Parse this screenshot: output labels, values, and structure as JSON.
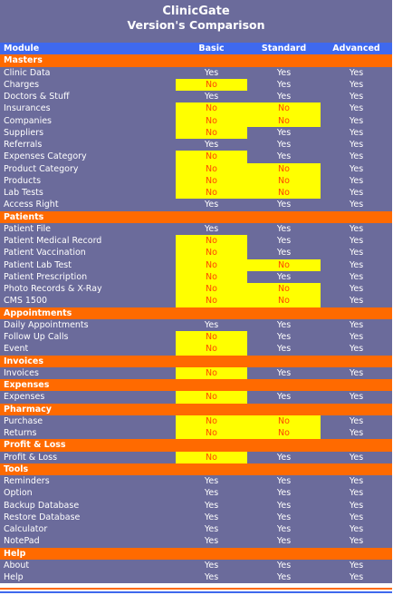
{
  "title": "ClinicGate",
  "subtitle": "Version's Comparison",
  "columns": [
    "Module",
    "Basic",
    "Standard",
    "Advanced"
  ],
  "colors": {
    "panel": "#6b6b9b",
    "header": "#3f69ee",
    "section": "#ff6a00",
    "no_bg": "#ffff00",
    "no_text": "#ff4500"
  },
  "sections": [
    {
      "name": "Masters",
      "rows": [
        {
          "name": "Clinic Data",
          "values": [
            "Yes",
            "Yes",
            "Yes"
          ]
        },
        {
          "name": "Charges",
          "values": [
            "No",
            "Yes",
            "Yes"
          ]
        },
        {
          "name": "Doctors & Stuff",
          "values": [
            "Yes",
            "Yes",
            "Yes"
          ]
        },
        {
          "name": "Insurances",
          "values": [
            "No",
            "No",
            "Yes"
          ]
        },
        {
          "name": "Companies",
          "values": [
            "No",
            "No",
            "Yes"
          ]
        },
        {
          "name": "Suppliers",
          "values": [
            "No",
            "Yes",
            "Yes"
          ]
        },
        {
          "name": "Referrals",
          "values": [
            "Yes",
            "Yes",
            "Yes"
          ]
        },
        {
          "name": "Expenses Category",
          "values": [
            "No",
            "Yes",
            "Yes"
          ]
        },
        {
          "name": "Product Category",
          "values": [
            "No",
            "No",
            "Yes"
          ]
        },
        {
          "name": "Products",
          "values": [
            "No",
            "No",
            "Yes"
          ]
        },
        {
          "name": "Lab Tests",
          "values": [
            "No",
            "No",
            "Yes"
          ]
        },
        {
          "name": "Access Right",
          "values": [
            "Yes",
            "Yes",
            "Yes"
          ]
        }
      ]
    },
    {
      "name": "Patients",
      "rows": [
        {
          "name": "Patient File",
          "values": [
            "Yes",
            "Yes",
            "Yes"
          ]
        },
        {
          "name": "Patient Medical Record",
          "values": [
            "No",
            "Yes",
            "Yes"
          ]
        },
        {
          "name": "Patient Vaccination",
          "values": [
            "No",
            "Yes",
            "Yes"
          ]
        },
        {
          "name": "Patient Lab Test",
          "values": [
            "No",
            "No",
            "Yes"
          ]
        },
        {
          "name": "Patient Prescription",
          "values": [
            "No",
            "Yes",
            "Yes"
          ]
        },
        {
          "name": "Photo Records & X-Ray",
          "values": [
            "No",
            "No",
            "Yes"
          ]
        },
        {
          "name": "CMS 1500",
          "values": [
            "No",
            "No",
            "Yes"
          ]
        }
      ]
    },
    {
      "name": "Appointments",
      "rows": [
        {
          "name": "Daily Appointments",
          "values": [
            "Yes",
            "Yes",
            "Yes"
          ]
        },
        {
          "name": "Follow Up Calls",
          "values": [
            "No",
            "Yes",
            "Yes"
          ]
        },
        {
          "name": "Event",
          "values": [
            "No",
            "Yes",
            "Yes"
          ]
        }
      ]
    },
    {
      "name": "Invoices",
      "rows": [
        {
          "name": "Invoices",
          "values": [
            "No",
            "Yes",
            "Yes"
          ]
        }
      ]
    },
    {
      "name": "Expenses",
      "rows": [
        {
          "name": "Expenses",
          "values": [
            "No",
            "Yes",
            "Yes"
          ]
        }
      ]
    },
    {
      "name": "Pharmacy",
      "rows": [
        {
          "name": "Purchase",
          "values": [
            "No",
            "No",
            "Yes"
          ]
        },
        {
          "name": "Returns",
          "values": [
            "No",
            "No",
            "Yes"
          ]
        }
      ]
    },
    {
      "name": "Profit & Loss",
      "rows": [
        {
          "name": "Profit & Loss",
          "values": [
            "No",
            "Yes",
            "Yes"
          ]
        }
      ]
    },
    {
      "name": "Tools",
      "rows": [
        {
          "name": "Reminders",
          "values": [
            "Yes",
            "Yes",
            "Yes"
          ]
        },
        {
          "name": "Option",
          "values": [
            "Yes",
            "Yes",
            "Yes"
          ]
        },
        {
          "name": "Backup Database",
          "values": [
            "Yes",
            "Yes",
            "Yes"
          ]
        },
        {
          "name": "Restore Database",
          "values": [
            "Yes",
            "Yes",
            "Yes"
          ]
        },
        {
          "name": "Calculator",
          "values": [
            "Yes",
            "Yes",
            "Yes"
          ]
        },
        {
          "name": "NotePad",
          "values": [
            "Yes",
            "Yes",
            "Yes"
          ]
        }
      ]
    },
    {
      "name": "Help",
      "rows": [
        {
          "name": "About",
          "values": [
            "Yes",
            "Yes",
            "Yes"
          ]
        },
        {
          "name": "Help",
          "values": [
            "Yes",
            "Yes",
            "Yes"
          ]
        }
      ]
    }
  ]
}
